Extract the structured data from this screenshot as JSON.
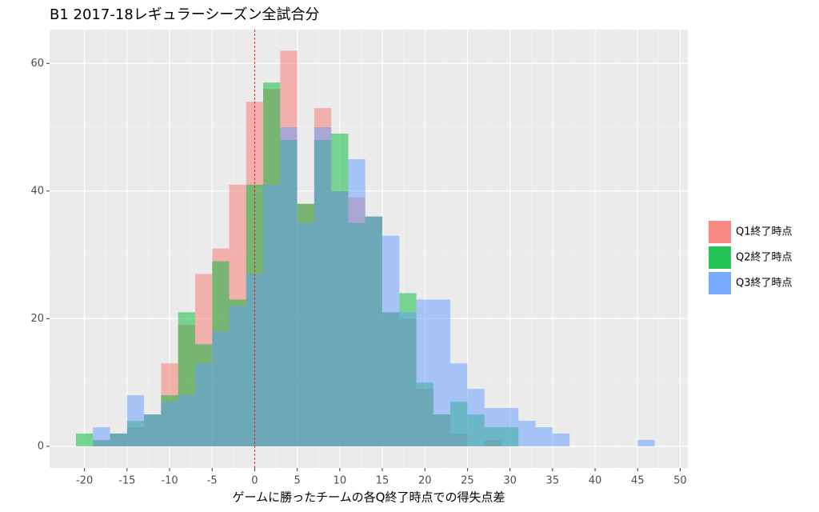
{
  "chart_data": {
    "type": "histogram",
    "title": "B1 2017-18レギュラーシーズン全試合分",
    "x_label": "ゲームに勝ったチームの各Q終了時点での得失点差",
    "bins": [
      -21,
      -19,
      -17,
      -15,
      -13,
      -11,
      -9,
      -7,
      -5,
      -3,
      -1,
      1,
      3,
      5,
      7,
      9,
      11,
      13,
      15,
      17,
      19,
      21,
      23,
      25,
      27,
      29,
      31,
      33,
      35,
      37,
      39,
      41,
      43,
      45,
      47
    ],
    "series": [
      {
        "name": "Q1終了時点",
        "color": "#F8766D",
        "values": [
          0,
          1,
          2,
          3,
          5,
          13,
          19,
          27,
          31,
          41,
          54,
          56,
          62,
          38,
          53,
          40,
          39,
          36,
          21,
          20,
          9,
          5,
          2,
          0,
          1,
          0,
          0,
          0,
          0,
          0,
          0,
          0,
          0,
          0
        ]
      },
      {
        "name": "Q2終了時点",
        "color": "#00BA38",
        "values": [
          2,
          1,
          2,
          4,
          5,
          8,
          21,
          16,
          29,
          23,
          41,
          57,
          48,
          38,
          48,
          49,
          35,
          36,
          21,
          24,
          10,
          5,
          7,
          5,
          3,
          3,
          0,
          0,
          0,
          0,
          0,
          0,
          0,
          0
        ]
      },
      {
        "name": "Q3終了時点",
        "color": "#619CFF",
        "values": [
          0,
          3,
          2,
          8,
          5,
          7,
          8,
          13,
          18,
          22,
          27,
          41,
          50,
          35,
          50,
          40,
          45,
          36,
          33,
          21,
          23,
          23,
          13,
          9,
          6,
          6,
          4,
          3,
          2,
          0,
          0,
          0,
          0,
          1
        ]
      }
    ],
    "xlim": [
      -24.1,
      50.9
    ],
    "xticks": [
      -20,
      -15,
      -10,
      -5,
      0,
      5,
      10,
      15,
      20,
      25,
      30,
      35,
      40,
      45,
      50
    ],
    "ylim": [
      -3.4,
      65.3
    ],
    "yticks": [
      0,
      20,
      40,
      60
    ],
    "vline": 0,
    "vline_color": "#e41a1c",
    "opacity": 0.5,
    "grid": true,
    "legend": "right"
  }
}
